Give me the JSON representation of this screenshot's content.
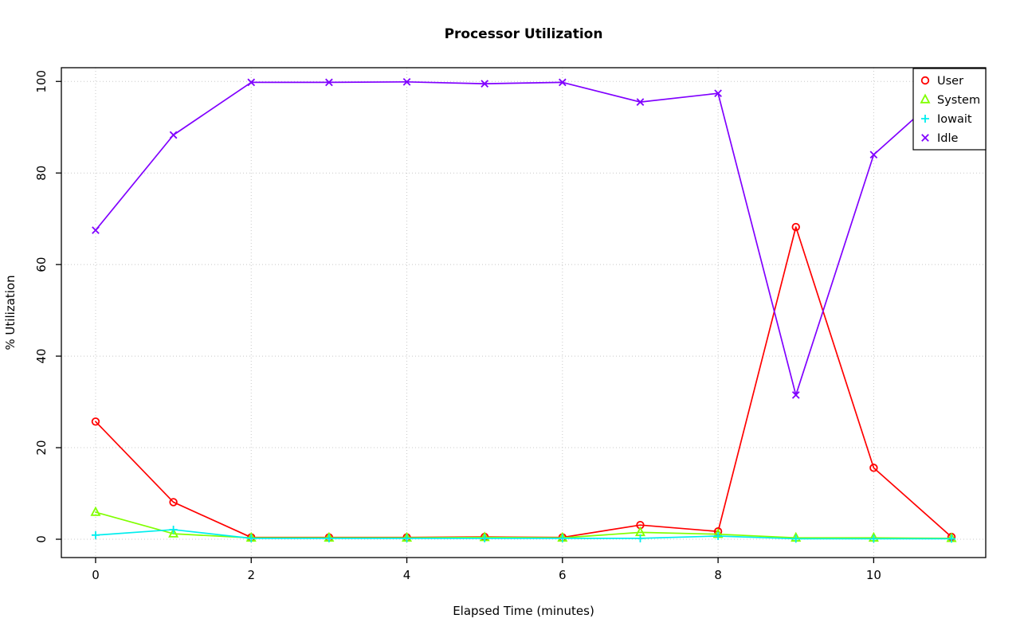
{
  "chart_data": {
    "type": "line",
    "title": "Processor Utilization",
    "xlabel": "Elapsed Time (minutes)",
    "ylabel": "% Utilization",
    "xlim": [
      -0.44,
      11.44
    ],
    "ylim": [
      -4,
      103
    ],
    "xticks": [
      0,
      2,
      4,
      6,
      8,
      10
    ],
    "yticks": [
      0,
      20,
      40,
      60,
      80,
      100
    ],
    "grid": true,
    "grid_style": "dotted",
    "legend_position": "top-right",
    "background": "#ffffff",
    "grid_color": "#c8c8c8",
    "x": [
      0,
      1,
      2,
      3,
      4,
      5,
      6,
      7,
      8,
      9,
      10,
      11
    ],
    "series": [
      {
        "name": "User",
        "color": "#ff0000",
        "marker": "circle",
        "values": [
          25.7,
          8.1,
          0.4,
          0.4,
          0.4,
          0.5,
          0.4,
          3.1,
          1.7,
          68.2,
          15.6,
          0.5
        ]
      },
      {
        "name": "System",
        "color": "#80ff00",
        "marker": "triangle",
        "values": [
          5.9,
          1.2,
          0.3,
          0.3,
          0.3,
          0.4,
          0.3,
          1.5,
          1.1,
          0.3,
          0.3,
          0.2
        ]
      },
      {
        "name": "Iowait",
        "color": "#00eeee",
        "marker": "plus",
        "values": [
          0.9,
          2.1,
          0.2,
          0.2,
          0.2,
          0.2,
          0.2,
          0.2,
          0.7,
          0.1,
          0.1,
          0.1
        ]
      },
      {
        "name": "Idle",
        "color": "#8000ff",
        "marker": "x",
        "values": [
          67.5,
          88.3,
          99.8,
          99.8,
          99.9,
          99.5,
          99.8,
          95.5,
          97.4,
          31.5,
          84.0,
          99.2
        ]
      }
    ]
  }
}
